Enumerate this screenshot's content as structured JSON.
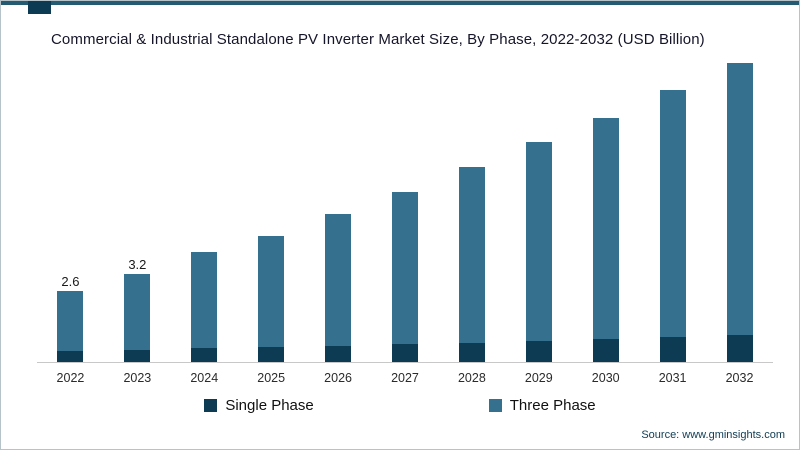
{
  "accent": {
    "top_bar_color": "#245a72",
    "notch_color": "#0d3b53"
  },
  "source": "Source: www.gminsights.com",
  "chart_data": {
    "type": "bar",
    "stacked": true,
    "title": "Commercial & Industrial Standalone PV Inverter Market Size, By Phase, 2022-2032 (USD Billion)",
    "categories": [
      "2022",
      "2023",
      "2024",
      "2025",
      "2026",
      "2027",
      "2028",
      "2029",
      "2030",
      "2031",
      "2032"
    ],
    "series": [
      {
        "name": "Single Phase",
        "color": "#0d3b53",
        "values": [
          0.4,
          0.45,
          0.5,
          0.55,
          0.6,
          0.65,
          0.7,
          0.75,
          0.85,
          0.9,
          1.0
        ]
      },
      {
        "name": "Three Phase",
        "color": "#36708f",
        "values": [
          2.2,
          2.75,
          3.5,
          4.05,
          4.8,
          5.55,
          6.4,
          7.25,
          8.05,
          9.0,
          9.9
        ]
      }
    ],
    "totals": [
      2.6,
      3.2,
      4.0,
      4.6,
      5.4,
      6.2,
      7.1,
      8.0,
      8.9,
      9.9,
      10.9
    ],
    "value_labels": [
      "2.6",
      "3.2",
      "",
      "",
      "",
      "",
      "",
      "",
      "",
      "",
      ""
    ],
    "xlabel": "",
    "ylabel": "",
    "ylim": [
      0,
      11
    ],
    "grid": false,
    "legend_position": "bottom"
  }
}
